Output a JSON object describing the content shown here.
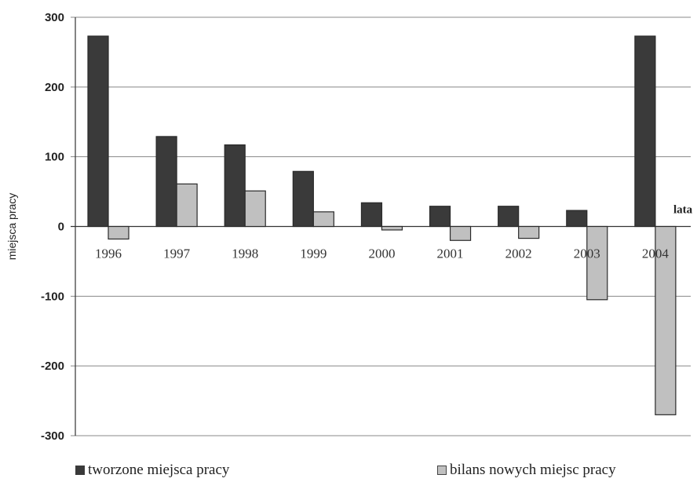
{
  "chart_data": {
    "type": "bar",
    "categories": [
      "1996",
      "1997",
      "1998",
      "1999",
      "2000",
      "2001",
      "2002",
      "2003",
      "2004"
    ],
    "series": [
      {
        "name": "tworzone miejsca pracy",
        "values": [
          273,
          129,
          117,
          79,
          34,
          29,
          29,
          23,
          273
        ],
        "color": "#3a3a3a"
      },
      {
        "name": "bilans nowych miejsc pracy",
        "values": [
          -18,
          61,
          51,
          21,
          -5,
          -20,
          -17,
          -105,
          -270
        ],
        "color": "#c0c0c0"
      }
    ],
    "yticks": [
      "300",
      "200",
      "100",
      "0",
      "-100",
      "-200",
      "-300"
    ],
    "ylim": [
      -300,
      300
    ],
    "ylabel": "miejsca pracy",
    "xlabel": "lata",
    "grid": true,
    "legend_position": "bottom"
  }
}
